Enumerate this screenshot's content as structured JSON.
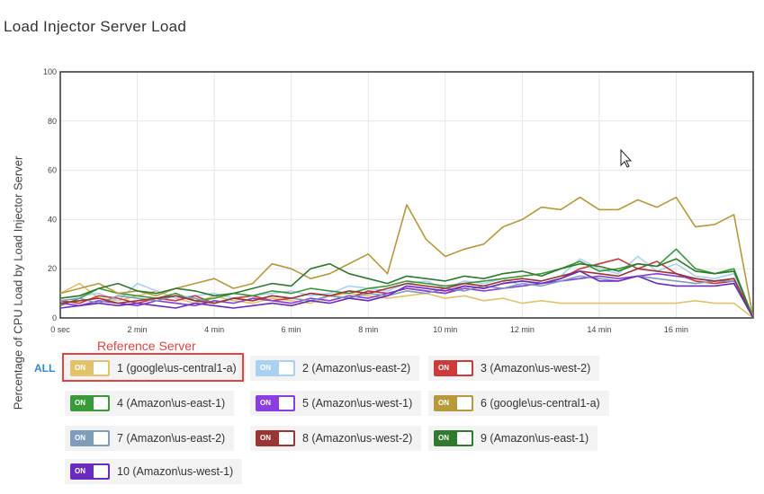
{
  "page": {
    "title": "Load Injector Server Load",
    "reference_label": "Reference Server",
    "all_label": "ALL"
  },
  "chart_data": {
    "type": "line",
    "ylabel": "Percentage of CPU Load by Load Injector Server",
    "xlabel": "",
    "ylim": [
      0,
      100
    ],
    "xlim": [
      0,
      18
    ],
    "x_unit": "min",
    "yticks": [
      0,
      20,
      40,
      60,
      80,
      100
    ],
    "xticks": [
      {
        "value": 0,
        "label": "0 sec"
      },
      {
        "value": 2,
        "label": "2 min"
      },
      {
        "value": 4,
        "label": "4 min"
      },
      {
        "value": 6,
        "label": "6 min"
      },
      {
        "value": 8,
        "label": "8 min"
      },
      {
        "value": 10,
        "label": "10 min"
      },
      {
        "value": 12,
        "label": "12 min"
      },
      {
        "value": 14,
        "label": "14 min"
      },
      {
        "value": 16,
        "label": "16 min"
      }
    ],
    "grid": true,
    "x": [
      0,
      0.5,
      1,
      1.5,
      2,
      2.5,
      3,
      3.5,
      4,
      4.5,
      5,
      5.5,
      6,
      6.5,
      7,
      7.5,
      8,
      8.5,
      9,
      9.5,
      10,
      10.5,
      11,
      11.5,
      12,
      12.5,
      13,
      13.5,
      14,
      14.5,
      15,
      15.5,
      16,
      16.5,
      17,
      17.5,
      18
    ],
    "series": [
      {
        "name": "1 (google\\us-central1-a)",
        "color": "#e2c36b",
        "toggle": "ON",
        "values": [
          10,
          14,
          8,
          7,
          9,
          11,
          8,
          6,
          9,
          7,
          6,
          8,
          7,
          6,
          9,
          10,
          9,
          8,
          9,
          10,
          8,
          9,
          7,
          8,
          6,
          7,
          6,
          6,
          6,
          6,
          6,
          6,
          6,
          7,
          6,
          6,
          0
        ]
      },
      {
        "name": "2 (Amazon\\us-east-2)",
        "color": "#a9d1f2",
        "toggle": "ON",
        "values": [
          8,
          9,
          10,
          7,
          14,
          11,
          8,
          9,
          10,
          8,
          9,
          10,
          11,
          9,
          10,
          13,
          12,
          11,
          14,
          15,
          12,
          15,
          14,
          16,
          13,
          15,
          17,
          24,
          20,
          18,
          25,
          19,
          22,
          17,
          16,
          18,
          0
        ]
      },
      {
        "name": "3 (Amazon\\us-west-2)",
        "color": "#cc3a3a",
        "toggle": "ON",
        "values": [
          7,
          6,
          9,
          8,
          6,
          8,
          7,
          9,
          6,
          8,
          9,
          7,
          8,
          10,
          9,
          8,
          11,
          10,
          12,
          11,
          10,
          13,
          12,
          14,
          15,
          14,
          16,
          20,
          22,
          24,
          20,
          23,
          18,
          15,
          14,
          15,
          0
        ]
      },
      {
        "name": "4 (Amazon\\us-east-1)",
        "color": "#3a9a3a",
        "toggle": "ON",
        "values": [
          5,
          8,
          12,
          10,
          9,
          8,
          10,
          7,
          8,
          10,
          9,
          11,
          10,
          12,
          11,
          10,
          12,
          13,
          15,
          14,
          13,
          14,
          15,
          16,
          17,
          18,
          20,
          23,
          19,
          20,
          22,
          21,
          28,
          20,
          18,
          20,
          0
        ]
      },
      {
        "name": "5 (Amazon\\us-west-1)",
        "color": "#8a3de0",
        "toggle": "ON",
        "values": [
          6,
          5,
          7,
          6,
          5,
          7,
          6,
          5,
          7,
          6,
          8,
          7,
          6,
          8,
          7,
          9,
          8,
          10,
          12,
          11,
          10,
          12,
          11,
          12,
          13,
          14,
          15,
          16,
          17,
          16,
          17,
          18,
          17,
          16,
          15,
          16,
          0
        ]
      },
      {
        "name": "6 (google\\us-central1-a)",
        "color": "#b8993a",
        "toggle": "ON",
        "values": [
          10,
          12,
          14,
          10,
          11,
          9,
          12,
          14,
          16,
          12,
          14,
          22,
          20,
          16,
          18,
          22,
          26,
          18,
          46,
          32,
          25,
          28,
          30,
          37,
          40,
          45,
          44,
          49,
          44,
          44,
          48,
          45,
          49,
          37,
          38,
          42,
          0
        ]
      },
      {
        "name": "7 (Amazon\\us-east-2)",
        "color": "#7d9dba",
        "toggle": "ON",
        "values": [
          7,
          8,
          6,
          9,
          8,
          7,
          9,
          8,
          6,
          8,
          7,
          9,
          8,
          7,
          9,
          8,
          10,
          9,
          11,
          10,
          12,
          11,
          13,
          12,
          14,
          13,
          15,
          17,
          16,
          15,
          17,
          16,
          15,
          14,
          15,
          15,
          0
        ]
      },
      {
        "name": "8 (Amazon\\us-west-2)",
        "color": "#9b3535",
        "toggle": "ON",
        "values": [
          6,
          7,
          8,
          6,
          7,
          8,
          9,
          7,
          6,
          8,
          7,
          9,
          8,
          10,
          9,
          11,
          10,
          12,
          14,
          13,
          12,
          14,
          13,
          15,
          16,
          15,
          17,
          19,
          18,
          17,
          20,
          19,
          18,
          16,
          15,
          16,
          0
        ]
      },
      {
        "name": "9 (Amazon\\us-east-1)",
        "color": "#2f7a2f",
        "toggle": "ON",
        "values": [
          8,
          9,
          12,
          14,
          11,
          10,
          12,
          11,
          9,
          10,
          12,
          14,
          13,
          20,
          22,
          18,
          16,
          14,
          17,
          16,
          15,
          17,
          16,
          18,
          19,
          17,
          20,
          22,
          21,
          19,
          22,
          21,
          24,
          19,
          18,
          19,
          0
        ]
      },
      {
        "name": "10 (Amazon\\us-west-1)",
        "color": "#6a2cc0",
        "toggle": "ON",
        "values": [
          4,
          5,
          6,
          5,
          6,
          5,
          4,
          6,
          5,
          4,
          5,
          6,
          5,
          7,
          6,
          8,
          7,
          9,
          13,
          12,
          11,
          13,
          12,
          14,
          15,
          14,
          16,
          19,
          15,
          15,
          17,
          14,
          13,
          13,
          13,
          14,
          0
        ]
      }
    ]
  }
}
